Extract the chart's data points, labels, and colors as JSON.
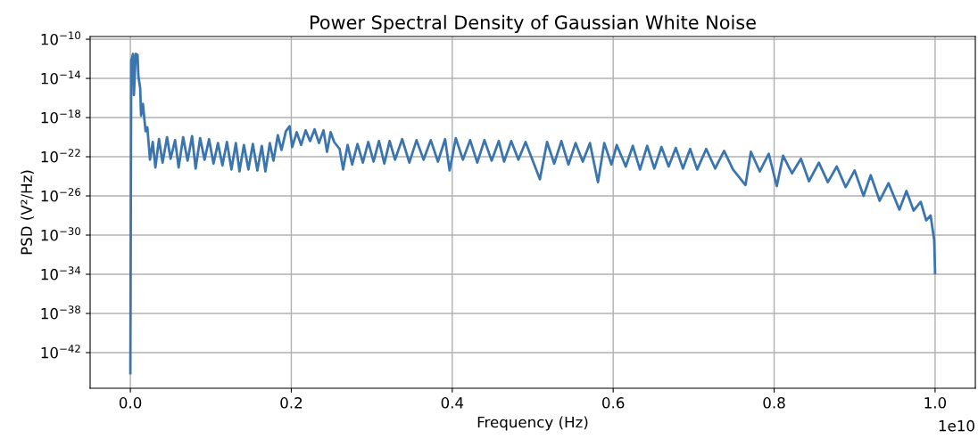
{
  "chart_data": {
    "type": "line",
    "title": "Power Spectral Density of Gaussian White Noise",
    "xlabel": "Frequency (Hz)",
    "ylabel": "PSD (V²/Hz)",
    "log": "y",
    "grid": true,
    "legend": false,
    "marker": "none",
    "line_style": "solid",
    "xlim": [
      -0.05,
      1.05
    ],
    "ylim": [
      2.3e-46,
      1.9e-10
    ],
    "xticks": [
      {
        "value": 0,
        "label": "0.0"
      },
      0.2,
      0.4,
      0.6,
      0.8,
      {
        "value": 1,
        "label": "1.0"
      }
    ],
    "yticks": [
      {
        "value": 1e-10,
        "label": "10$^{−10}$"
      },
      {
        "value": 1e-14,
        "label": "10$^{−14}$"
      },
      {
        "value": 1e-18,
        "label": "10$^{−18}$"
      },
      {
        "value": 1e-22,
        "label": "10$^{−22}$"
      },
      {
        "value": 1e-26,
        "label": "10$^{−26}$"
      },
      {
        "value": 1e-30,
        "label": "10$^{−30}$"
      },
      {
        "value": 1e-34,
        "label": "10$^{−34}$"
      },
      {
        "value": 1e-38,
        "label": "10$^{−38}$"
      },
      {
        "value": 1e-42,
        "label": "10$^{−42}$"
      }
    ],
    "annotations": [
      "1e10"
    ],
    "x": [
      0,
      0.0011,
      0.0033,
      0.0044,
      0.0067,
      0.0089,
      0.01,
      0.0122,
      0.0133,
      0.0156,
      0.0189,
      0.0211,
      0.0244,
      0.0278,
      0.0311,
      0.0356,
      0.04,
      0.0456,
      0.05,
      0.0556,
      0.06,
      0.0656,
      0.0711,
      0.0767,
      0.0811,
      0.0867,
      0.0922,
      0.0978,
      0.1033,
      0.1089,
      0.1144,
      0.12,
      0.1256,
      0.1311,
      0.1356,
      0.1411,
      0.1467,
      0.1522,
      0.1578,
      0.1633,
      0.1678,
      0.1733,
      0.1778,
      0.1833,
      0.1878,
      0.1933,
      0.1978,
      0.2011,
      0.2067,
      0.2122,
      0.2178,
      0.2233,
      0.2289,
      0.2344,
      0.24,
      0.2444,
      0.2489,
      0.2533,
      0.26,
      0.2644,
      0.27,
      0.2756,
      0.2822,
      0.2889,
      0.2956,
      0.3022,
      0.3089,
      0.3156,
      0.3222,
      0.3289,
      0.3378,
      0.3467,
      0.3556,
      0.3644,
      0.3733,
      0.3822,
      0.3911,
      0.3967,
      0.4044,
      0.4133,
      0.4222,
      0.4311,
      0.44,
      0.4489,
      0.4578,
      0.4644,
      0.4733,
      0.4822,
      0.4911,
      0.5089,
      0.5178,
      0.5267,
      0.5356,
      0.5444,
      0.5533,
      0.5622,
      0.5711,
      0.5811,
      0.5889,
      0.5978,
      0.6044,
      0.6156,
      0.6244,
      0.6333,
      0.6422,
      0.6511,
      0.66,
      0.6689,
      0.6778,
      0.6867,
      0.6956,
      0.7044,
      0.7156,
      0.7267,
      0.7378,
      0.7489,
      0.7644,
      0.7711,
      0.7822,
      0.7933,
      0.8033,
      0.8111,
      0.8222,
      0.8333,
      0.8433,
      0.8556,
      0.8667,
      0.8778,
      0.8889,
      0.9,
      0.9111,
      0.92,
      0.9311,
      0.9422,
      0.9556,
      0.9644,
      0.9733,
      0.9822,
      0.9889,
      0.9944,
      0.9989,
      1.0
    ],
    "series": [
      {
        "color": "#3b75af",
        "values": [
          8e-45,
          6.3e-13,
          3.2e-12,
          2e-16,
          3.2e-12,
          2.5e-12,
          1.6e-14,
          1e-15,
          1.6e-18,
          2.5e-17,
          4e-20,
          1e-19,
          5e-23,
          3.2e-21,
          8e-24,
          6.3e-21,
          2.5e-23,
          1e-20,
          6.3e-23,
          5e-21,
          8e-24,
          1e-20,
          4e-23,
          1.3e-20,
          6.3e-24,
          8e-21,
          5e-23,
          6.3e-21,
          2e-23,
          2.5e-21,
          1.3e-23,
          3.2e-21,
          5e-24,
          2.5e-21,
          3.2e-24,
          1.6e-21,
          5e-24,
          2e-21,
          4e-24,
          1.3e-21,
          3.2e-24,
          2.5e-21,
          4e-23,
          1.6e-20,
          5e-22,
          4e-20,
          1.3e-19,
          1e-21,
          3.2e-20,
          1.6e-21,
          5e-20,
          4e-21,
          6.3e-20,
          2.5e-21,
          5e-20,
          3.2e-22,
          3.2e-20,
          3.2e-21,
          6.3e-22,
          5e-24,
          1.6e-21,
          1.6e-23,
          2e-21,
          2.5e-23,
          3.2e-21,
          3.2e-23,
          4e-21,
          2e-23,
          4e-21,
          5e-23,
          6.3e-21,
          2.5e-23,
          5e-21,
          5e-23,
          5e-21,
          3.2e-23,
          6.3e-21,
          4e-24,
          8e-21,
          5e-23,
          5e-21,
          2.5e-23,
          5e-21,
          4e-23,
          4e-21,
          3.2e-23,
          4e-21,
          5e-23,
          3.2e-21,
          5e-25,
          3.2e-21,
          2e-23,
          4e-21,
          1.6e-23,
          2.5e-21,
          3.2e-23,
          2.5e-21,
          2.5e-25,
          2.5e-21,
          1.6e-23,
          1.6e-21,
          1e-23,
          1.3e-21,
          5e-24,
          1.3e-21,
          6.3e-24,
          1e-21,
          1e-23,
          8e-22,
          6.3e-24,
          6.3e-22,
          5e-24,
          6.3e-22,
          6.3e-24,
          4e-22,
          5e-24,
          1.3e-25,
          3.2e-22,
          3.2e-24,
          2e-22,
          1e-25,
          1.3e-22,
          2e-24,
          6.3e-23,
          3.2e-25,
          2.5e-23,
          2.5e-25,
          1e-23,
          8e-26,
          4e-24,
          1e-26,
          1.3e-24,
          3.2e-27,
          2e-25,
          4e-28,
          3.2e-26,
          3.2e-28,
          2.5e-27,
          3.2e-29,
          1e-28,
          3.2e-31,
          1.3e-34
        ]
      }
    ]
  }
}
